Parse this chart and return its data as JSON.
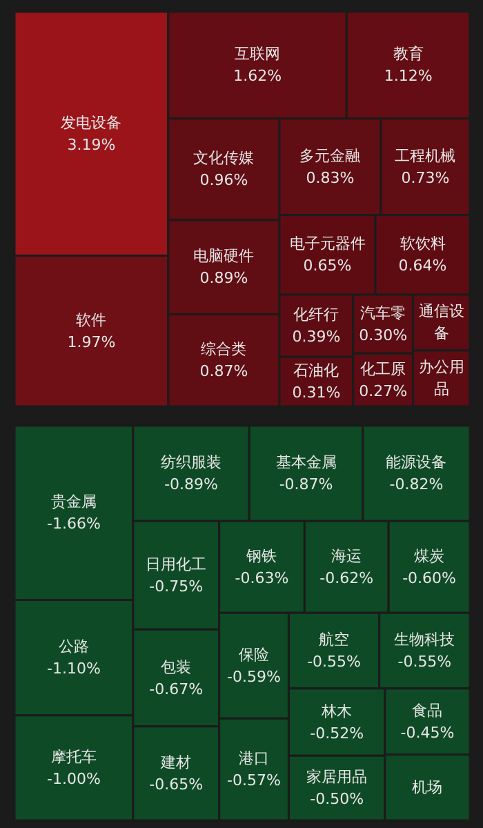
{
  "chart_data": [
    {
      "type": "other",
      "categories": [
        "发电设备",
        "软件",
        "互联网",
        "教育",
        "文化传媒",
        "电脑硬件",
        "综合类",
        "多元金融",
        "工程机械",
        "电子元器件",
        "软饮料",
        "化纤行",
        "石油化",
        "汽车零",
        "化工原",
        "通信设备",
        "办公用品"
      ],
      "values": [
        3.19,
        1.97,
        1.62,
        1.12,
        0.96,
        0.89,
        0.87,
        0.83,
        0.73,
        0.65,
        0.64,
        0.39,
        0.31,
        0.3,
        0.27,
        null,
        null
      ],
      "value_labels": [
        "3.19%",
        "1.97%",
        "1.62%",
        "1.12%",
        "0.96%",
        "0.89%",
        "0.87%",
        "0.83%",
        "0.73%",
        "0.65%",
        "0.64%",
        "0.39%",
        "0.31%",
        "0.30%",
        "0.27%",
        null,
        null
      ],
      "colors": [
        "#9a1419",
        "#6e1016",
        "#640d14",
        "#640d14",
        "#600d13",
        "#600d13",
        "#600d13",
        "#600d13",
        "#600d13",
        "#5e0c12",
        "#5e0c12",
        "#5c0c12",
        "#5c0c12",
        "#5c0c12",
        "#5c0c12",
        "#5c0c12",
        "#5c0c12"
      ]
    },
    {
      "type": "other",
      "categories": [
        "贵金属",
        "公路",
        "摩托车",
        "纺织服装",
        "基本金属",
        "能源设备",
        "日用化工",
        "包装",
        "建材",
        "钢铁",
        "海运",
        "煤炭",
        "保险",
        "港口",
        "航空",
        "生物科技",
        "林木",
        "家居用品",
        "食品",
        "机场"
      ],
      "values": [
        -1.66,
        -1.1,
        -1.0,
        -0.89,
        -0.87,
        -0.82,
        -0.75,
        -0.67,
        -0.65,
        -0.63,
        -0.62,
        -0.6,
        -0.59,
        -0.57,
        -0.55,
        -0.55,
        -0.52,
        -0.5,
        -0.45,
        null
      ],
      "value_labels": [
        "-1.66%",
        "-1.10%",
        "-1.00%",
        "-0.89%",
        "-0.87%",
        "-0.82%",
        "-0.75%",
        "-0.67%",
        "-0.65%",
        "-0.63%",
        "-0.62%",
        "-0.60%",
        "-0.59%",
        "-0.57%",
        "-0.55%",
        "-0.55%",
        "-0.52%",
        "-0.50%",
        "-0.45%",
        null
      ],
      "colors": [
        "#0f4a26",
        "#0f4a26",
        "#0f4a26",
        "#0f4a26",
        "#0f4a26",
        "#0f4a26",
        "#0f4a26",
        "#0f4a26",
        "#0f4a26",
        "#0f4a26",
        "#0f4a26",
        "#0f4a26",
        "#0f4a26",
        "#0f4a26",
        "#0f4a26",
        "#0f4a26",
        "#0f4a26",
        "#0f4a26",
        "#0f4a26",
        "#0f4a26"
      ]
    }
  ]
}
